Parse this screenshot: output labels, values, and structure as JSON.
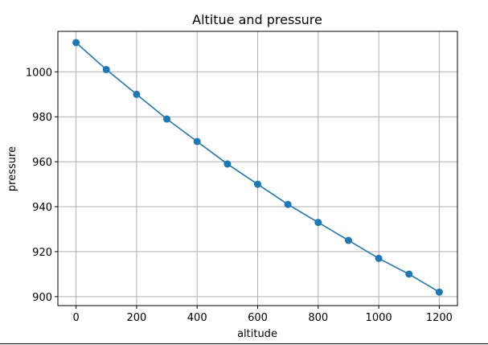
{
  "chart_data": {
    "type": "line",
    "title": "Altitue and pressure",
    "xlabel": "altitude",
    "ylabel": "pressure",
    "x": [
      0,
      100,
      200,
      300,
      400,
      500,
      600,
      700,
      800,
      900,
      1000,
      1100,
      1200
    ],
    "series": [
      {
        "values": [
          1013,
          1001,
          990,
          979,
          969,
          959,
          950,
          941,
          933,
          925,
          917,
          910,
          902
        ],
        "color": "#1f77b4",
        "marker": "circle"
      }
    ],
    "xlim": [
      -60,
      1260
    ],
    "ylim": [
      896,
      1018
    ],
    "xticks": [
      0,
      200,
      400,
      600,
      800,
      1000,
      1200
    ],
    "yticks": [
      900,
      920,
      940,
      960,
      980,
      1000
    ],
    "xtick_labels": [
      "0",
      "200",
      "400",
      "600",
      "800",
      "1000",
      "1200"
    ],
    "ytick_labels": [
      "900",
      "920",
      "940",
      "960",
      "980",
      "1000"
    ],
    "grid": true
  }
}
